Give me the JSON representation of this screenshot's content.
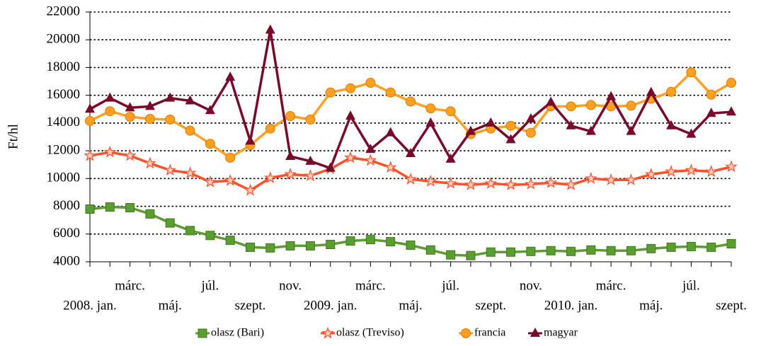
{
  "chart_data": {
    "type": "line",
    "ylabel": "Ft/hl",
    "categories": [
      "2008. jan.",
      null,
      "márc.",
      null,
      "máj.",
      null,
      "júl.",
      null,
      "szept.",
      null,
      "nov.",
      null,
      "2009. jan.",
      null,
      "márc.",
      null,
      "máj.",
      null,
      "júl.",
      null,
      "szept.",
      null,
      "nov.",
      null,
      "2010. jan.",
      null,
      "márc.",
      null,
      "máj.",
      null,
      "júl.",
      null,
      "szept."
    ],
    "ylim": [
      4000,
      22000
    ],
    "yticks": [
      4000,
      6000,
      8000,
      10000,
      12000,
      14000,
      16000,
      18000,
      20000,
      22000
    ],
    "grid": true,
    "legend": "bottom",
    "series": [
      {
        "name": "olasz (Bari)",
        "color": "#5a9e2f",
        "marker": "square",
        "values": [
          7800,
          7950,
          7900,
          7450,
          6800,
          6250,
          5900,
          5550,
          5050,
          5000,
          5150,
          5150,
          5250,
          5500,
          5600,
          5450,
          5200,
          4850,
          4500,
          4450,
          4700,
          4700,
          4750,
          4800,
          4750,
          4850,
          4800,
          4800,
          4950,
          5050,
          5100,
          5050,
          5300
        ]
      },
      {
        "name": "olasz (Treviso)",
        "color": "#ff4f2a",
        "marker": "star",
        "values": [
          11650,
          11900,
          11650,
          11100,
          10600,
          10400,
          9750,
          9850,
          9150,
          10050,
          10300,
          10200,
          10700,
          11500,
          11300,
          10800,
          9950,
          9800,
          9650,
          9550,
          9650,
          9550,
          9600,
          9700,
          9550,
          10000,
          9900,
          9900,
          10300,
          10500,
          10600,
          10500,
          10850
        ]
      },
      {
        "name": "francia",
        "color": "#ffa020",
        "marker": "circle",
        "values": [
          14150,
          14850,
          14450,
          14300,
          14250,
          13450,
          12500,
          11500,
          12400,
          13600,
          14500,
          14250,
          16200,
          16500,
          16900,
          16200,
          15550,
          15050,
          14850,
          13200,
          13600,
          13800,
          13300,
          15200,
          15200,
          15300,
          15200,
          15250,
          15750,
          16250,
          17650,
          16050,
          16900
        ]
      },
      {
        "name": "magyar",
        "color": "#7a0a2a",
        "marker": "triangle",
        "values": [
          15000,
          15800,
          15100,
          15200,
          15800,
          15600,
          14900,
          17300,
          12700,
          20700,
          11600,
          11250,
          10750,
          14500,
          12100,
          13300,
          11800,
          14000,
          11400,
          13400,
          14000,
          12800,
          14300,
          15500,
          13800,
          13400,
          15900,
          13400,
          16200,
          13800,
          13200,
          14700,
          14800
        ]
      }
    ]
  }
}
